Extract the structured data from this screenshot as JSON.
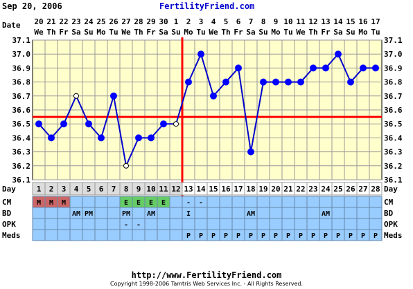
{
  "header": {
    "date": "Sep 20, 2006",
    "site": "FertilityFriend.com"
  },
  "footer": {
    "url": "http://www.FertilityFriend.com",
    "copyright": "Copyright 1998-2006 Tamtris Web Services Inc. - All Rights Reserved."
  },
  "colors": {
    "grid_bg": "#ffffcc",
    "line": "#0000cc",
    "marker_fill": "#0000ff",
    "coverline": "#ff0000",
    "row_blue": "#99ccff",
    "cell_menses": "#cc6666",
    "cell_egg": "#66cc66",
    "cell_day": "#dddddd"
  },
  "chart_data": {
    "type": "line",
    "title": "",
    "xlabel": "Day",
    "ylabel": "",
    "row_label_date": "Date",
    "row_label_day": "Day",
    "ylim": [
      36.1,
      37.1
    ],
    "yticks": [
      "36.1",
      "36.2",
      "36.3",
      "36.4",
      "36.5",
      "36.6",
      "36.7",
      "36.8",
      "36.9",
      "37.0",
      "37.1"
    ],
    "grid": true,
    "date_numbers": [
      "20",
      "21",
      "22",
      "23",
      "24",
      "25",
      "26",
      "27",
      "28",
      "29",
      "30",
      "1",
      "2",
      "3",
      "4",
      "5",
      "6",
      "7",
      "8",
      "9",
      "10",
      "11",
      "12",
      "13",
      "14",
      "15",
      "16",
      "17"
    ],
    "weekdays": [
      "We",
      "Th",
      "Fr",
      "Sa",
      "Su",
      "Mo",
      "Tu",
      "We",
      "Th",
      "Fr",
      "Sa",
      "Su",
      "Mo",
      "Tu",
      "We",
      "Th",
      "Fr",
      "Sa",
      "Su",
      "Mo",
      "Tu",
      "We",
      "Th",
      "Fr",
      "Sa",
      "Su",
      "Mo",
      "Tu"
    ],
    "days": [
      "1",
      "2",
      "3",
      "4",
      "5",
      "6",
      "7",
      "8",
      "9",
      "10",
      "11",
      "12",
      "13",
      "14",
      "15",
      "16",
      "17",
      "18",
      "19",
      "20",
      "21",
      "22",
      "23",
      "24",
      "25",
      "26",
      "27",
      "28"
    ],
    "series": [
      {
        "temps": [
          36.5,
          36.4,
          36.5,
          36.7,
          36.5,
          36.4,
          36.7,
          36.2,
          36.4,
          36.4,
          36.5,
          36.5,
          36.8,
          37.0,
          36.7,
          36.8,
          36.9,
          36.3,
          36.8,
          36.8,
          36.8,
          36.8,
          36.9,
          36.9,
          37.0,
          36.8,
          36.9,
          36.9
        ],
        "open_marker_days": [
          4,
          8,
          12
        ]
      }
    ],
    "coverline": 36.55,
    "ovulation_day": 13,
    "rows": [
      {
        "label": "CM",
        "cells": [
          "M",
          "M",
          "M",
          "",
          "",
          "",
          "",
          "E",
          "E",
          "E",
          "E",
          "",
          "-",
          "-",
          "",
          "",
          "",
          "",
          "",
          "",
          "",
          "",
          "",
          "",
          "",
          "",
          "",
          ""
        ]
      },
      {
        "label": "BD",
        "cells": [
          "",
          "",
          "",
          "AM",
          "PM",
          "",
          "",
          "PM",
          "",
          "AM",
          "",
          "",
          "I",
          "",
          "",
          "",
          "",
          "AM",
          "",
          "",
          "",
          "",
          "",
          "AM",
          "",
          "",
          "",
          ""
        ]
      },
      {
        "label": "OPK",
        "cells": [
          "",
          "",
          "",
          "",
          "",
          "",
          "",
          "-",
          "-",
          "",
          "",
          "",
          "",
          "",
          "",
          "",
          "",
          "",
          "",
          "",
          "",
          "",
          "",
          "",
          "",
          "",
          "",
          ""
        ]
      },
      {
        "label": "Meds",
        "cells": [
          "",
          "",
          "",
          "",
          "",
          "",
          "",
          "",
          "",
          "",
          "",
          "",
          "P",
          "P",
          "P",
          "P",
          "P",
          "P",
          "P",
          "P",
          "P",
          "P",
          "P",
          "P",
          "P",
          "P",
          "P",
          "P"
        ]
      }
    ]
  }
}
